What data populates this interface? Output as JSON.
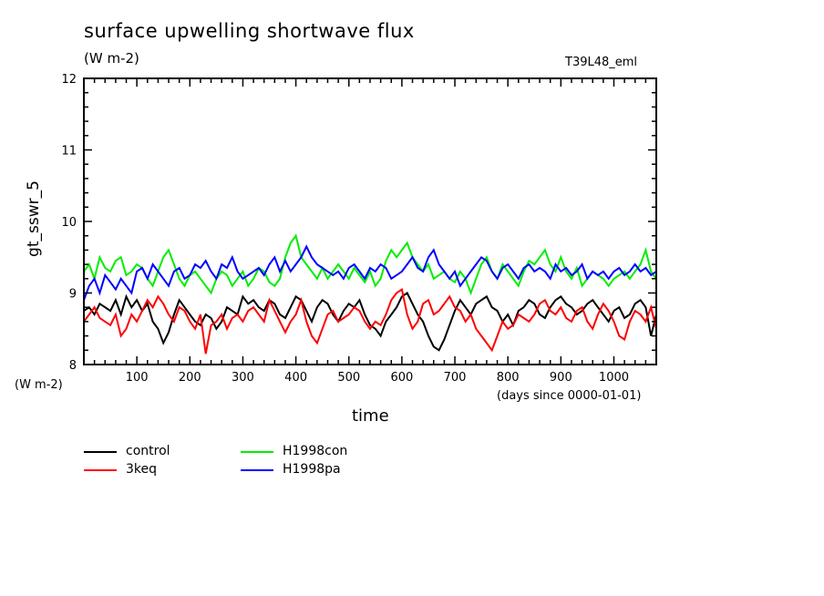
{
  "chart_data": {
    "type": "line",
    "title": "surface upwelling shortwave flux",
    "subtitle": "(W m-2)",
    "run_label": "T39L48_eml",
    "xlabel": "time",
    "x_units": "(days since 0000-01-01)",
    "ylabel": "gt_sswr_5",
    "y_units": "(W m-2)",
    "xlim": [
      0,
      1080
    ],
    "ylim": [
      8,
      12
    ],
    "x_ticks": [
      100,
      200,
      300,
      400,
      500,
      600,
      700,
      800,
      900,
      1000
    ],
    "y_ticks": [
      8,
      9,
      10,
      11,
      12
    ],
    "grid": false,
    "legend_position": "bottom-left",
    "x": [
      0,
      10,
      20,
      30,
      40,
      50,
      60,
      70,
      80,
      90,
      100,
      110,
      120,
      130,
      140,
      150,
      160,
      170,
      180,
      190,
      200,
      210,
      220,
      230,
      240,
      250,
      260,
      270,
      280,
      290,
      300,
      310,
      320,
      330,
      340,
      350,
      360,
      370,
      380,
      390,
      400,
      410,
      420,
      430,
      440,
      450,
      460,
      470,
      480,
      490,
      500,
      510,
      520,
      530,
      540,
      550,
      560,
      570,
      580,
      590,
      600,
      610,
      620,
      630,
      640,
      650,
      660,
      670,
      680,
      690,
      700,
      710,
      720,
      730,
      740,
      750,
      760,
      770,
      780,
      790,
      800,
      810,
      820,
      830,
      840,
      850,
      860,
      870,
      880,
      890,
      900,
      910,
      920,
      930,
      940,
      950,
      960,
      970,
      980,
      990,
      1000,
      1010,
      1020,
      1030,
      1040,
      1050,
      1060,
      1070,
      1080
    ],
    "series": [
      {
        "name": "control",
        "color": "#000000",
        "values": [
          8.75,
          8.8,
          8.7,
          8.85,
          8.8,
          8.75,
          8.9,
          8.7,
          8.95,
          8.8,
          8.9,
          8.75,
          8.85,
          8.6,
          8.5,
          8.3,
          8.45,
          8.7,
          8.9,
          8.8,
          8.7,
          8.6,
          8.55,
          8.7,
          8.65,
          8.5,
          8.6,
          8.8,
          8.75,
          8.7,
          8.95,
          8.85,
          8.9,
          8.8,
          8.75,
          8.9,
          8.85,
          8.7,
          8.65,
          8.8,
          8.95,
          8.9,
          8.75,
          8.6,
          8.8,
          8.9,
          8.85,
          8.7,
          8.6,
          8.75,
          8.85,
          8.8,
          8.9,
          8.7,
          8.55,
          8.5,
          8.4,
          8.6,
          8.7,
          8.8,
          8.95,
          9.0,
          8.85,
          8.7,
          8.6,
          8.4,
          8.25,
          8.2,
          8.35,
          8.55,
          8.75,
          8.9,
          8.8,
          8.7,
          8.85,
          8.9,
          8.95,
          8.8,
          8.75,
          8.6,
          8.7,
          8.55,
          8.75,
          8.8,
          8.9,
          8.85,
          8.7,
          8.65,
          8.8,
          8.9,
          8.95,
          8.85,
          8.8,
          8.7,
          8.75,
          8.85,
          8.9,
          8.8,
          8.7,
          8.6,
          8.75,
          8.8,
          8.65,
          8.7,
          8.85,
          8.9,
          8.8,
          8.4,
          8.7
        ]
      },
      {
        "name": "3keq",
        "color": "#ff0000",
        "values": [
          8.6,
          8.7,
          8.8,
          8.65,
          8.6,
          8.55,
          8.7,
          8.4,
          8.5,
          8.7,
          8.6,
          8.75,
          8.9,
          8.8,
          8.95,
          8.85,
          8.7,
          8.6,
          8.8,
          8.75,
          8.6,
          8.5,
          8.7,
          8.15,
          8.55,
          8.6,
          8.7,
          8.5,
          8.65,
          8.7,
          8.6,
          8.75,
          8.8,
          8.7,
          8.6,
          8.9,
          8.75,
          8.6,
          8.45,
          8.6,
          8.7,
          8.9,
          8.6,
          8.4,
          8.3,
          8.5,
          8.7,
          8.75,
          8.6,
          8.65,
          8.7,
          8.8,
          8.75,
          8.6,
          8.5,
          8.6,
          8.55,
          8.7,
          8.9,
          9.0,
          9.05,
          8.7,
          8.5,
          8.6,
          8.85,
          8.9,
          8.7,
          8.75,
          8.85,
          8.95,
          8.8,
          8.75,
          8.6,
          8.7,
          8.5,
          8.4,
          8.3,
          8.2,
          8.4,
          8.6,
          8.5,
          8.55,
          8.7,
          8.65,
          8.6,
          8.7,
          8.85,
          8.9,
          8.75,
          8.7,
          8.8,
          8.65,
          8.6,
          8.75,
          8.8,
          8.6,
          8.5,
          8.7,
          8.85,
          8.75,
          8.6,
          8.4,
          8.35,
          8.6,
          8.75,
          8.7,
          8.6,
          8.8,
          8.5
        ]
      },
      {
        "name": "H1998con",
        "color": "#00ee00",
        "values": [
          9.3,
          9.4,
          9.2,
          9.5,
          9.35,
          9.3,
          9.45,
          9.5,
          9.25,
          9.3,
          9.4,
          9.35,
          9.2,
          9.1,
          9.3,
          9.5,
          9.6,
          9.4,
          9.2,
          9.1,
          9.25,
          9.3,
          9.2,
          9.1,
          9.0,
          9.2,
          9.3,
          9.25,
          9.1,
          9.2,
          9.3,
          9.1,
          9.2,
          9.35,
          9.3,
          9.15,
          9.1,
          9.2,
          9.5,
          9.7,
          9.8,
          9.5,
          9.4,
          9.3,
          9.2,
          9.35,
          9.2,
          9.3,
          9.4,
          9.3,
          9.2,
          9.35,
          9.25,
          9.15,
          9.3,
          9.1,
          9.2,
          9.45,
          9.6,
          9.5,
          9.6,
          9.7,
          9.5,
          9.4,
          9.3,
          9.4,
          9.2,
          9.25,
          9.3,
          9.2,
          9.15,
          9.3,
          9.2,
          9.0,
          9.2,
          9.4,
          9.5,
          9.3,
          9.2,
          9.4,
          9.3,
          9.2,
          9.1,
          9.3,
          9.45,
          9.4,
          9.5,
          9.6,
          9.4,
          9.3,
          9.5,
          9.3,
          9.2,
          9.35,
          9.1,
          9.2,
          9.3,
          9.25,
          9.2,
          9.1,
          9.2,
          9.25,
          9.3,
          9.2,
          9.3,
          9.4,
          9.6,
          9.3,
          9.2
        ]
      },
      {
        "name": "H1998pa",
        "color": "#0000ff",
        "values": [
          8.9,
          9.1,
          9.2,
          9.0,
          9.25,
          9.15,
          9.05,
          9.2,
          9.1,
          9.0,
          9.3,
          9.35,
          9.2,
          9.4,
          9.3,
          9.2,
          9.1,
          9.3,
          9.35,
          9.2,
          9.25,
          9.4,
          9.35,
          9.45,
          9.3,
          9.2,
          9.4,
          9.35,
          9.5,
          9.3,
          9.2,
          9.25,
          9.3,
          9.35,
          9.25,
          9.4,
          9.5,
          9.3,
          9.45,
          9.3,
          9.4,
          9.5,
          9.65,
          9.5,
          9.4,
          9.35,
          9.3,
          9.25,
          9.3,
          9.2,
          9.35,
          9.4,
          9.3,
          9.2,
          9.35,
          9.3,
          9.4,
          9.35,
          9.2,
          9.25,
          9.3,
          9.4,
          9.5,
          9.35,
          9.3,
          9.5,
          9.6,
          9.4,
          9.3,
          9.2,
          9.3,
          9.1,
          9.2,
          9.3,
          9.4,
          9.5,
          9.45,
          9.3,
          9.2,
          9.35,
          9.4,
          9.3,
          9.2,
          9.35,
          9.4,
          9.3,
          9.35,
          9.3,
          9.2,
          9.4,
          9.3,
          9.35,
          9.25,
          9.3,
          9.4,
          9.2,
          9.3,
          9.25,
          9.3,
          9.2,
          9.3,
          9.35,
          9.25,
          9.3,
          9.4,
          9.3,
          9.35,
          9.25,
          9.3
        ]
      }
    ]
  }
}
